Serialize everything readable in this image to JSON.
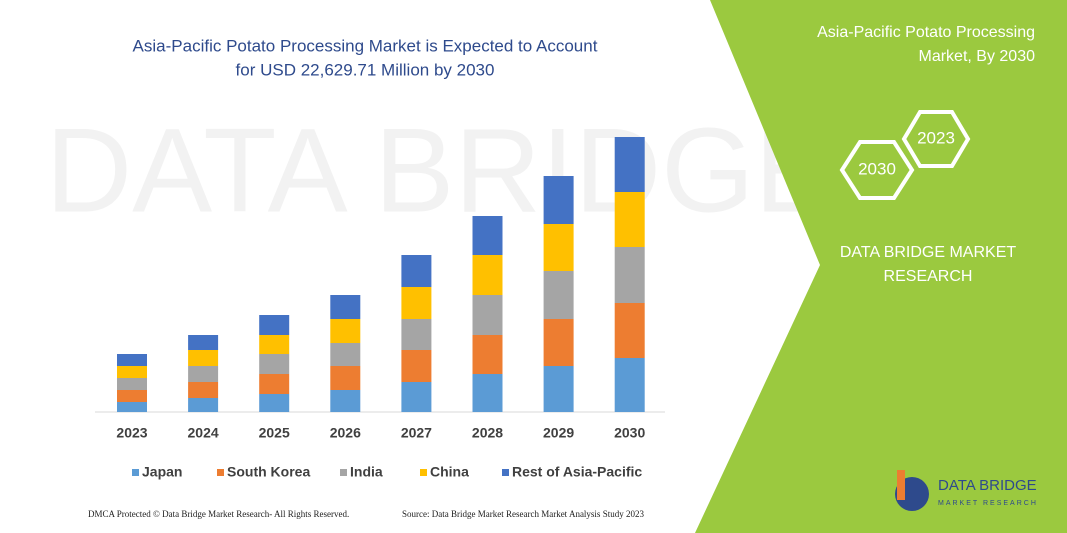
{
  "chart_data": {
    "type": "stacked_bar",
    "title": [
      "Asia-Pacific Potato Processing Market is Expected to Account",
      "for USD 22,629.71 Million by 2030"
    ],
    "categories": [
      "2023",
      "2024",
      "2025",
      "2026",
      "2027",
      "2028",
      "2029",
      "2030"
    ],
    "series": [
      {
        "name": "Japan",
        "color": "#5b9bd5",
        "values": [
          10,
          14,
          18,
          22,
          30,
          38,
          46,
          54
        ]
      },
      {
        "name": "South Korea",
        "color": "#ed7d31",
        "values": [
          12,
          16,
          20,
          24,
          32,
          39,
          47,
          55
        ]
      },
      {
        "name": "India",
        "color": "#a5a5a5",
        "values": [
          12,
          16,
          20,
          23,
          31,
          40,
          48,
          56
        ]
      },
      {
        "name": "China",
        "color": "#ffc000",
        "values": [
          12,
          16,
          19,
          24,
          32,
          40,
          47,
          55
        ]
      },
      {
        "name": "Rest of Asia-Pacific",
        "color": "#4472c4",
        "values": [
          12,
          15,
          20,
          24,
          32,
          39,
          48,
          55
        ]
      }
    ],
    "ylim": [
      0,
      300
    ],
    "legend": "bottom"
  },
  "panel": {
    "title": [
      "Asia-Pacific Potato Processing",
      "Market, By 2030"
    ],
    "hex": [
      "2023",
      "2030"
    ],
    "brand": [
      "DATA BRIDGE MARKET",
      "RESEARCH"
    ],
    "logo": [
      "DATA BRIDGE",
      "MARKET RESEARCH"
    ]
  },
  "footer": {
    "left": "DMCA Protected © Data Bridge Market Research- All Rights Reserved.",
    "right": "Source: Data Bridge Market Research Market Analysis Study 2023"
  }
}
